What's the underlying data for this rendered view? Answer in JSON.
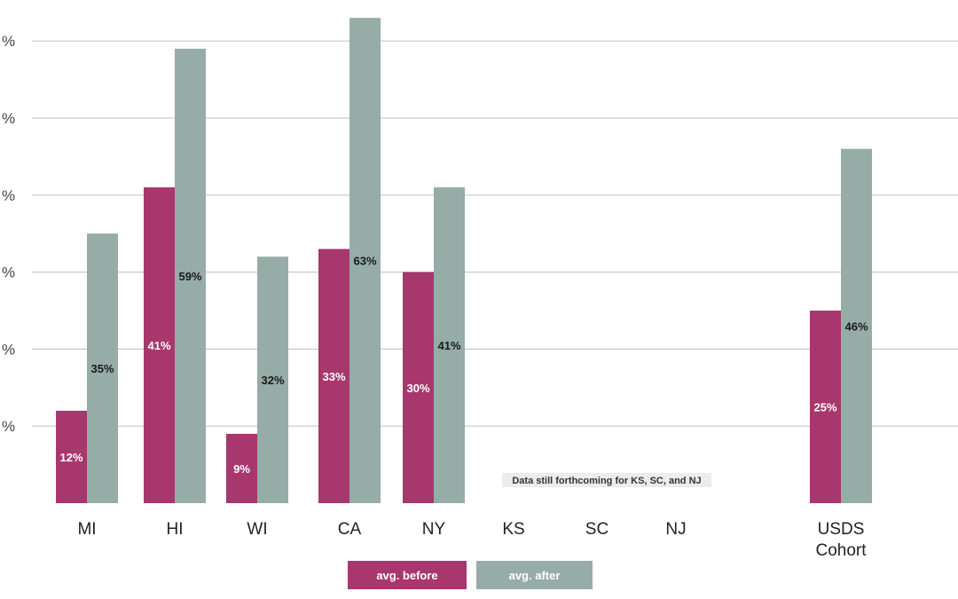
{
  "chart_data": {
    "type": "bar",
    "categories": [
      "MI",
      "HI",
      "WI",
      "CA",
      "NY",
      "KS",
      "SC",
      "NJ",
      "USDS Cohort"
    ],
    "series": [
      {
        "name": "avg. before",
        "color": "#a8376d",
        "values": [
          12,
          41,
          9,
          33,
          30,
          null,
          null,
          null,
          25
        ]
      },
      {
        "name": "avg. after",
        "color": "#96aca7",
        "values": [
          35,
          59,
          32,
          63,
          41,
          null,
          null,
          null,
          46
        ]
      }
    ],
    "data_labels": {
      "before": [
        "12%",
        "41%",
        "9%",
        "33%",
        "30%",
        "",
        "",
        "",
        "25%"
      ],
      "after": [
        "35%",
        "59%",
        "32%",
        "63%",
        "41%",
        "",
        "",
        "",
        "46%"
      ]
    },
    "y_tick_labels": [
      "%",
      "%",
      "%",
      "%",
      "%",
      "%"
    ],
    "ylim": [
      0,
      60
    ],
    "grid": true,
    "annotation": "Data still forthcoming for KS, SC, and NJ",
    "legend_position": "bottom-center"
  }
}
